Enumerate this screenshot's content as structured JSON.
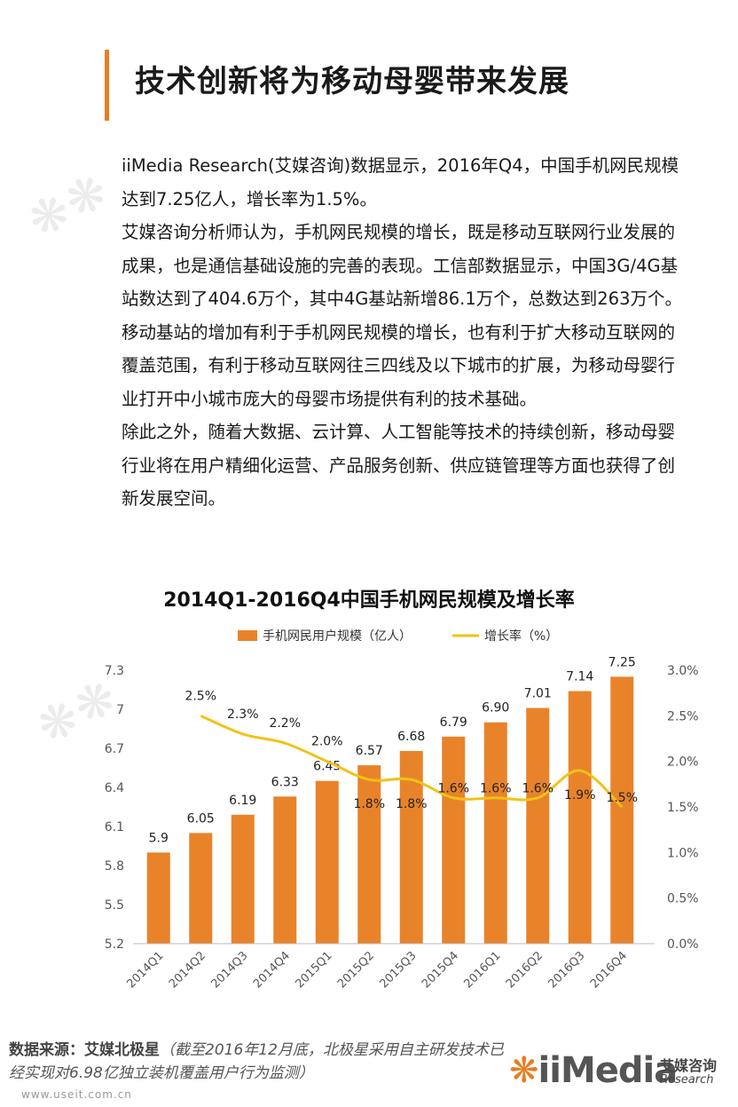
{
  "page": {
    "title": "技术创新将为移动母婴带来发展",
    "paragraphs": [
      "iiMedia Research(艾媒咨询)数据显示，2016年Q4，中国手机网民规模达到7.25亿人，增长率为1.5%。",
      "艾媒咨询分析师认为，手机网民规模的增长，既是移动互联网行业发展的成果，也是通信基础设施的完善的表现。工信部数据显示，中国3G/4G基站数达到了404.6万个，其中4G基站新增86.1万个，总数达到263万个。移动基站的增加有利于手机网民规模的增长，也有利于扩大移动互联网的覆盖范围，有利于移动互联网往三四线及以下城市的扩展，为移动母婴行业打开中小城市庞大的母婴市场提供有利的技术基础。",
      "除此之外，随着大数据、云计算、人工智能等技术的持续创新，移动母婴行业将在用户精细化运营、产品服务创新、供应链管理等方面也获得了创新发展空间。"
    ]
  },
  "chart_data": {
    "type": "bar",
    "title": "2014Q1-2016Q4中国手机网民规模及增长率",
    "categories": [
      "2014Q1",
      "2014Q2",
      "2014Q3",
      "2014Q4",
      "2015Q1",
      "2015Q2",
      "2015Q3",
      "2015Q4",
      "2016Q1",
      "2016Q2",
      "2016Q3",
      "2016Q4"
    ],
    "series": [
      {
        "name": "手机网民用户规模（亿人）",
        "type": "bar",
        "axis": "left",
        "color": "#e8832a",
        "values": [
          5.9,
          6.05,
          6.19,
          6.33,
          6.45,
          6.57,
          6.68,
          6.79,
          6.9,
          7.01,
          7.14,
          7.25
        ],
        "labels": [
          "5.9",
          "6.05",
          "6.19",
          "6.33",
          "6.45",
          "6.57",
          "6.68",
          "6.79",
          "6.90",
          "7.01",
          "7.14",
          "7.25"
        ]
      },
      {
        "name": "增长率（%）",
        "type": "line",
        "axis": "right",
        "color": "#f2c217",
        "values": [
          null,
          2.5,
          2.3,
          2.2,
          2.0,
          1.8,
          1.8,
          1.6,
          1.6,
          1.6,
          1.9,
          1.5
        ],
        "labels": [
          "",
          "2.5%",
          "2.3%",
          "2.2%",
          "2.0%",
          "1.8%",
          "1.8%",
          "1.6%",
          "1.6%",
          "1.6%",
          "1.9%",
          "1.5%"
        ]
      }
    ],
    "y_left": {
      "min": 5.2,
      "max": 7.3,
      "ticks": [
        "5.2",
        "5.5",
        "5.8",
        "6.1",
        "6.4",
        "6.7",
        "7",
        "7.3"
      ],
      "tick_values": [
        5.2,
        5.5,
        5.8,
        6.1,
        6.4,
        6.7,
        7.0,
        7.3
      ]
    },
    "y_right": {
      "min": 0,
      "max": 3.0,
      "ticks": [
        "0.0%",
        "0.5%",
        "1.0%",
        "1.5%",
        "2.0%",
        "2.5%",
        "3.0%"
      ],
      "tick_values": [
        0,
        0.5,
        1.0,
        1.5,
        2.0,
        2.5,
        3.0
      ]
    },
    "legend_position": "top",
    "grid": false
  },
  "source": {
    "label": "数据来源：艾媒北极星",
    "note": "（截至2016年12月底，北极星采用自主研发技术已经实现对6.98亿独立装机覆盖用户行为监测）",
    "url": "www.useit.com.cn"
  },
  "logo": {
    "brand": "iiMedia",
    "cn": "艾媒咨询",
    "en": "Research"
  }
}
